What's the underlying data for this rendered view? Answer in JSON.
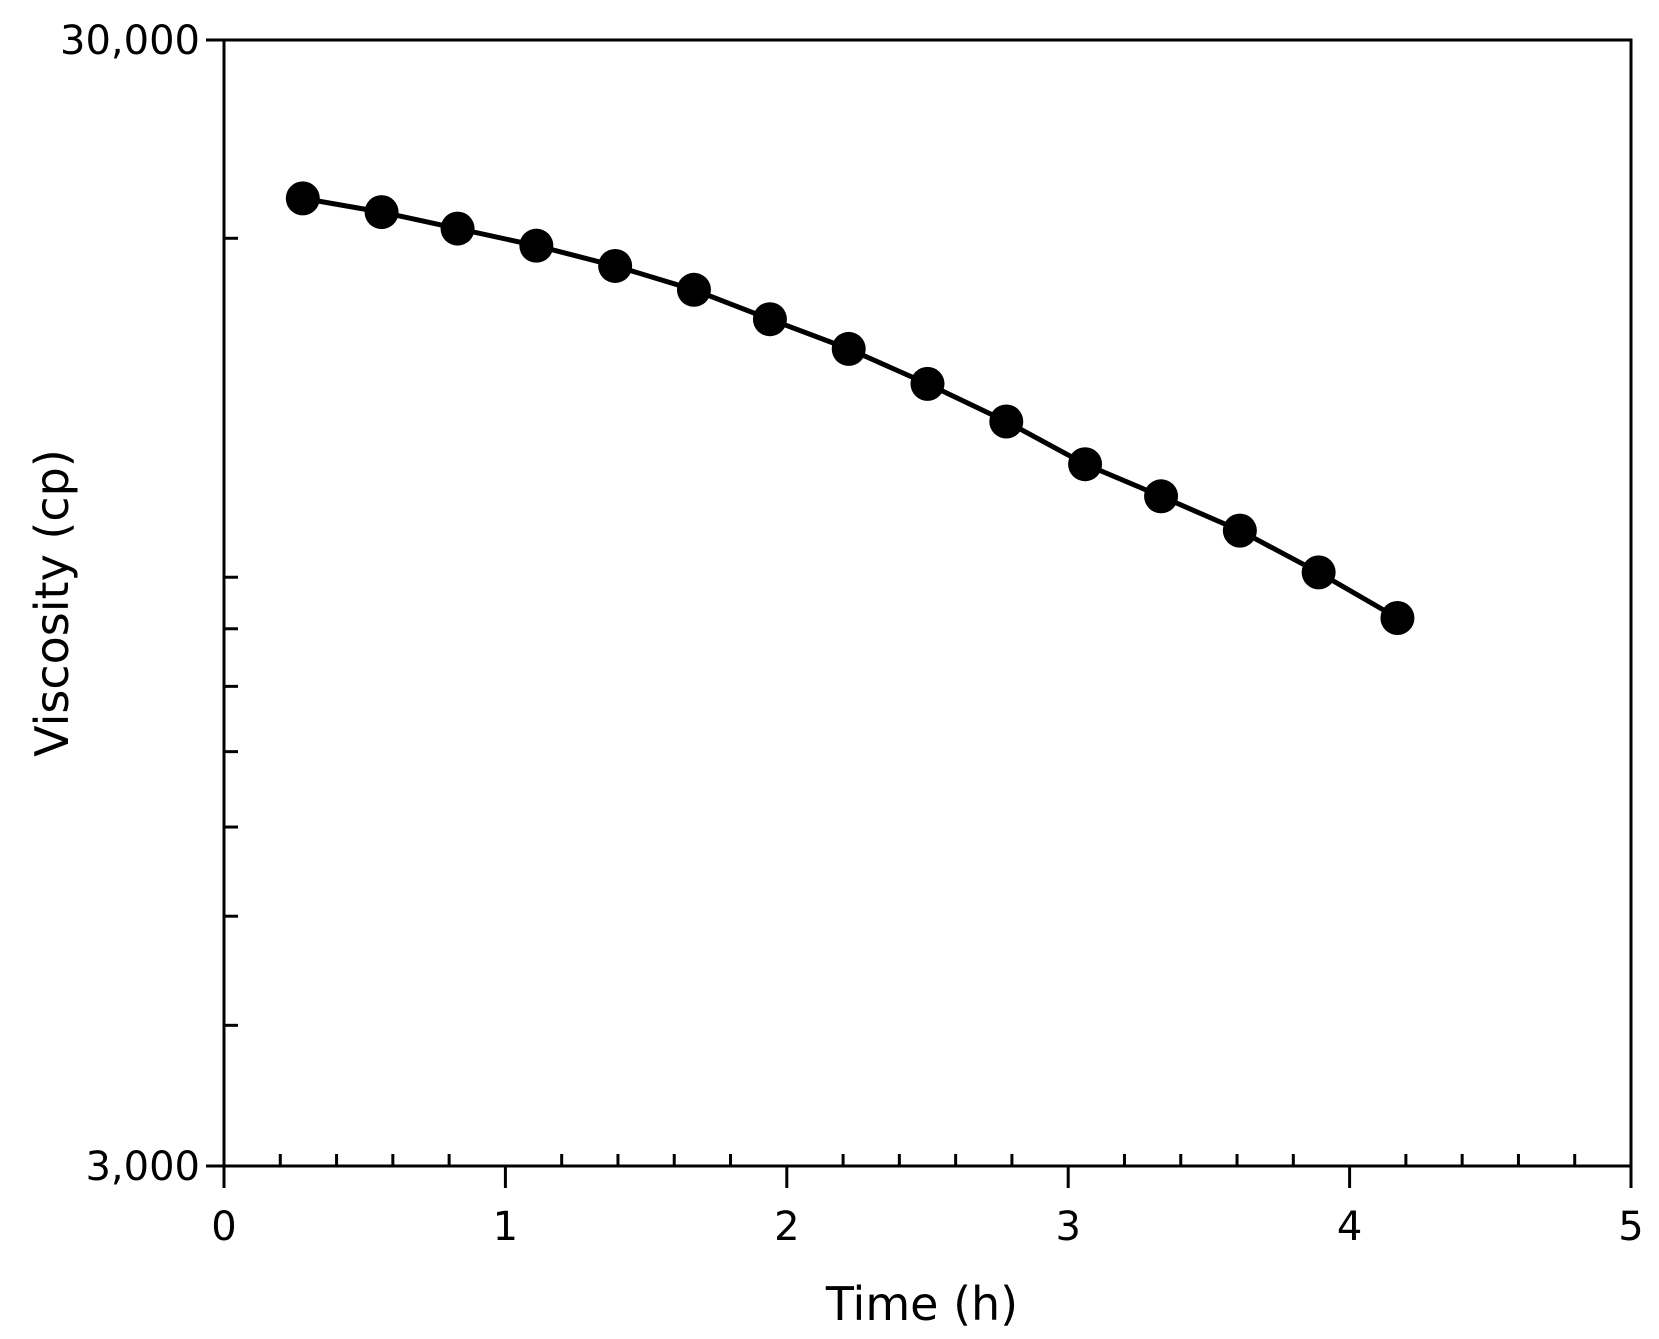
{
  "chart_data": {
    "type": "line",
    "title": "",
    "xlabel": "Time (h)",
    "ylabel": "Viscosity (cp)",
    "xlim": [
      0,
      5
    ],
    "ylim": [
      3000,
      30000
    ],
    "y_scale": "log",
    "grid": false,
    "x_ticks": [
      {
        "value": 0,
        "label": "0"
      },
      {
        "value": 1,
        "label": "1"
      },
      {
        "value": 2,
        "label": "2"
      },
      {
        "value": 3,
        "label": "3"
      },
      {
        "value": 4,
        "label": "4"
      },
      {
        "value": 5,
        "label": "5"
      }
    ],
    "x_minor_step": 0.2,
    "y_tick_labels": [
      {
        "value": 3000,
        "label": "3,000"
      },
      {
        "value": 30000,
        "label": "30,000"
      }
    ],
    "y_minor_ticks": [
      4000,
      5000,
      6000,
      7000,
      8000,
      9000,
      10000,
      20000
    ],
    "series": [
      {
        "color": "#000000",
        "marker": "circle",
        "x": [
          0.28,
          0.56,
          0.83,
          1.11,
          1.39,
          1.67,
          1.94,
          2.22,
          2.5,
          2.78,
          3.06,
          3.33,
          3.61,
          3.89,
          4.17
        ],
        "y": [
          21700,
          21100,
          20400,
          19700,
          18900,
          18000,
          16950,
          15950,
          14850,
          13750,
          12600,
          11800,
          11000,
          10100,
          9200
        ]
      }
    ]
  }
}
